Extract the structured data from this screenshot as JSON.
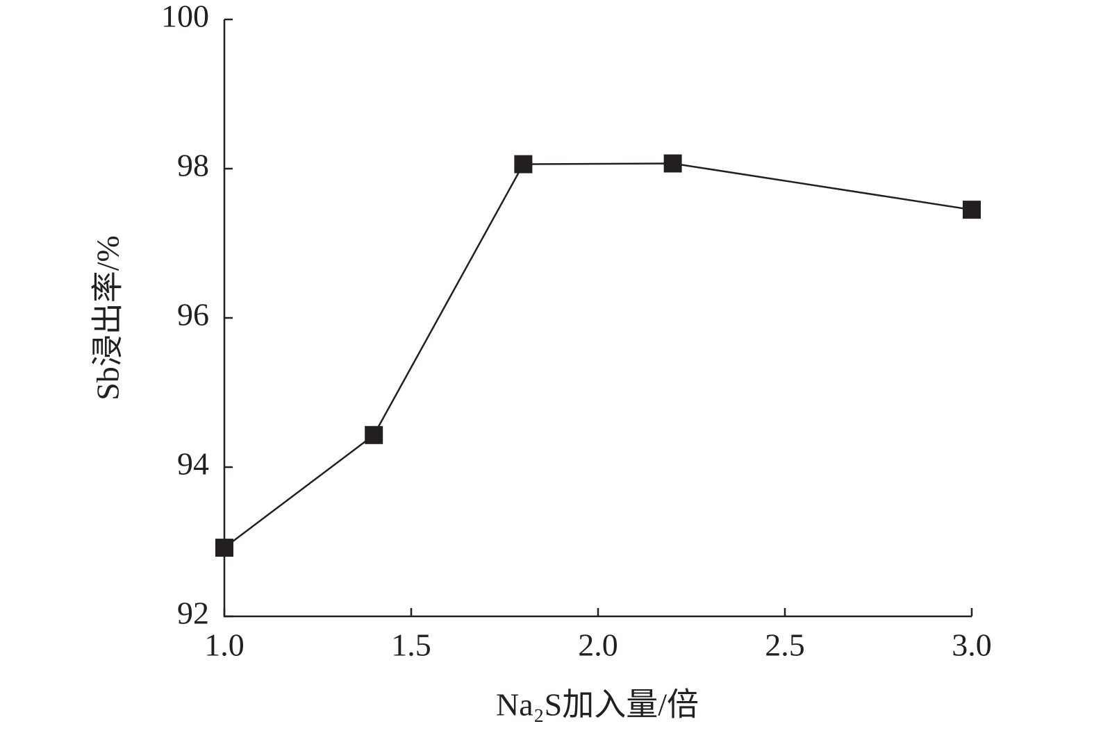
{
  "chart_data": {
    "type": "line",
    "xlabel": "Na₂S加入量/倍",
    "ylabel": "Sb浸出率/%",
    "x": [
      1.0,
      1.4,
      1.8,
      2.2,
      3.0
    ],
    "series": [
      {
        "name": "Sb",
        "color": "#231f20",
        "values": [
          92.92,
          94.43,
          98.06,
          98.07,
          97.45
        ]
      }
    ],
    "xlim": [
      1.0,
      3.0
    ],
    "xticks": [
      {
        "value": 1.0,
        "label": "1.0"
      },
      {
        "value": 1.5,
        "label": "1.5"
      },
      {
        "value": 2.0,
        "label": "2.0"
      },
      {
        "value": 2.5,
        "label": "2.5"
      },
      {
        "value": 3.0,
        "label": "3.0"
      }
    ],
    "ylim": [
      92,
      100
    ],
    "yticks": [
      92,
      94,
      96,
      98,
      100
    ],
    "grid": false
  }
}
